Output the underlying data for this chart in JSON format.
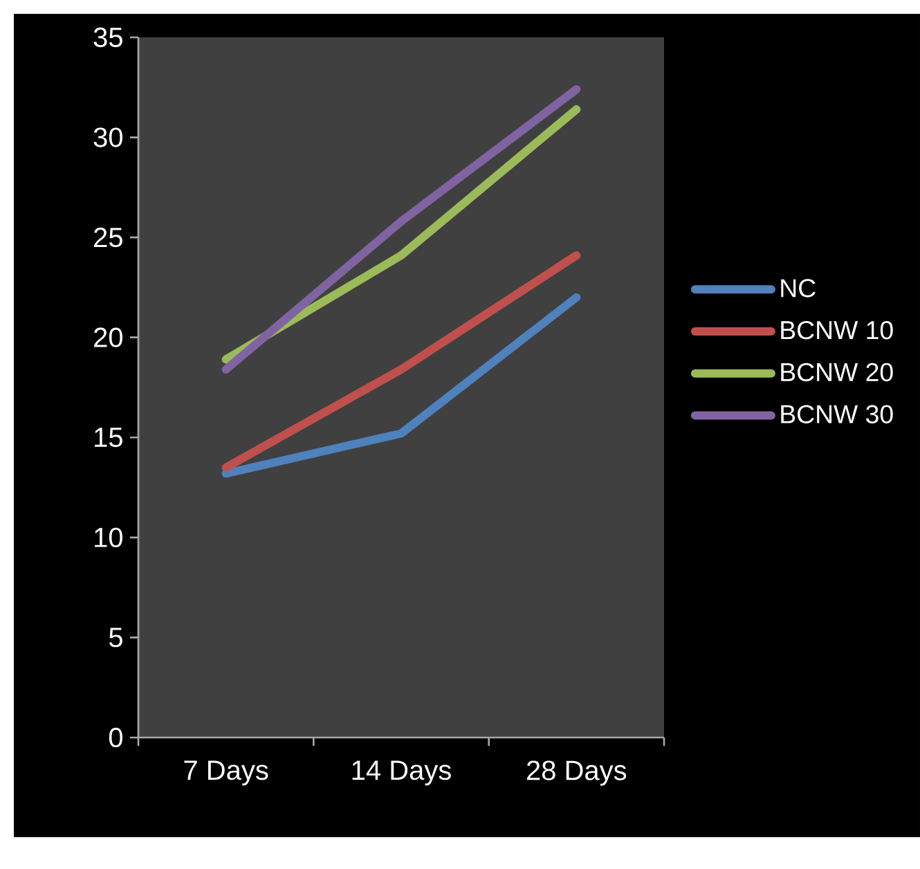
{
  "chart_data": {
    "type": "line",
    "categories": [
      "7 Days",
      "14 Days",
      "28 Days"
    ],
    "series": [
      {
        "name": "NC",
        "color": "#4f81bd",
        "values": [
          13.2,
          15.2,
          22.0
        ]
      },
      {
        "name": "BCNW 10",
        "color": "#c0504d",
        "values": [
          13.5,
          18.4,
          24.1
        ]
      },
      {
        "name": "BCNW 20",
        "color": "#9bbb59",
        "values": [
          18.9,
          24.1,
          31.4
        ]
      },
      {
        "name": "BCNW 30",
        "color": "#8064a2",
        "values": [
          18.4,
          25.8,
          32.4
        ]
      }
    ],
    "ylim": [
      0,
      35
    ],
    "yticks": [
      0,
      5,
      10,
      15,
      20,
      25,
      30,
      35
    ],
    "legend": "right",
    "marker": "none",
    "line_style": "solid"
  }
}
